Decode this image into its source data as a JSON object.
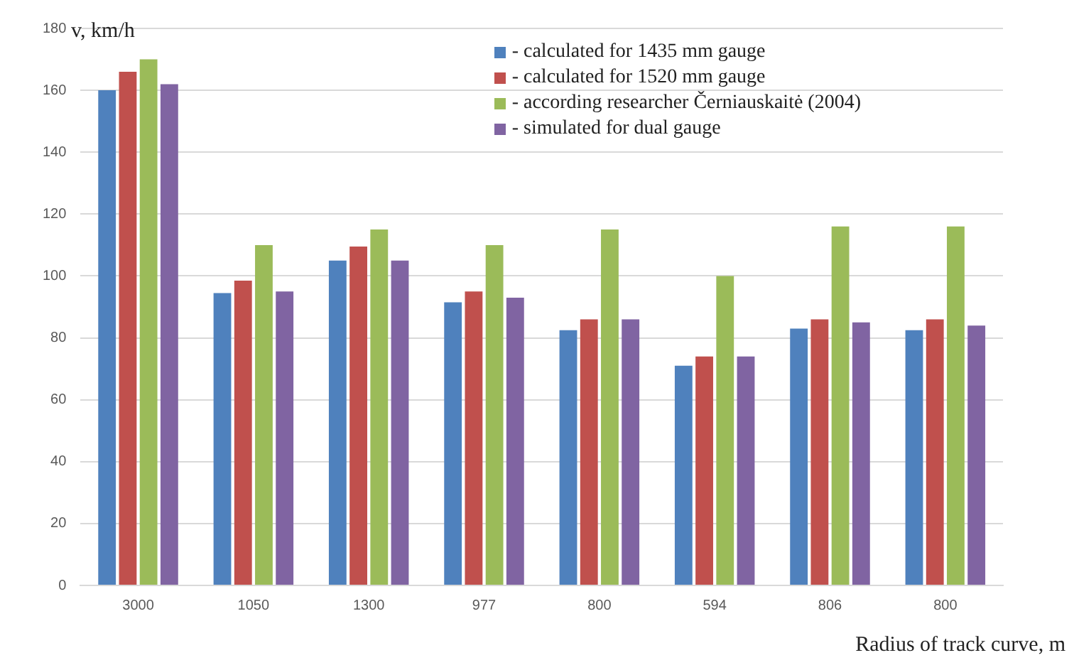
{
  "chart_data": {
    "type": "bar",
    "xlabel": "Radius of track curve, m",
    "ylabel": "v, km/h",
    "categories": [
      "3000",
      "1050",
      "1300",
      "977",
      "800",
      "594",
      "806",
      "800"
    ],
    "series": [
      {
        "name": "- calculated for 1435 mm gauge",
        "color": "#4f81bd",
        "values": [
          160,
          94.5,
          105,
          91.5,
          82.5,
          71,
          83,
          82.5
        ]
      },
      {
        "name": "- calculated for 1520 mm gauge",
        "color": "#c0504d",
        "values": [
          166,
          98.5,
          109.5,
          95,
          86,
          74,
          86,
          86
        ]
      },
      {
        "name": "- according researcher Černiauskaitė (2004)",
        "color": "#9bbb59",
        "values": [
          170,
          110,
          115,
          110,
          115,
          100,
          116,
          116
        ]
      },
      {
        "name": "- simulated for dual gauge",
        "color": "#8064a2",
        "values": [
          162,
          95,
          105,
          93,
          86,
          74,
          85,
          84
        ]
      }
    ],
    "ylim": [
      0,
      180
    ],
    "yticks": [
      0,
      20,
      40,
      60,
      80,
      100,
      120,
      140,
      160,
      180
    ],
    "grid": "y",
    "legend": "top right"
  }
}
